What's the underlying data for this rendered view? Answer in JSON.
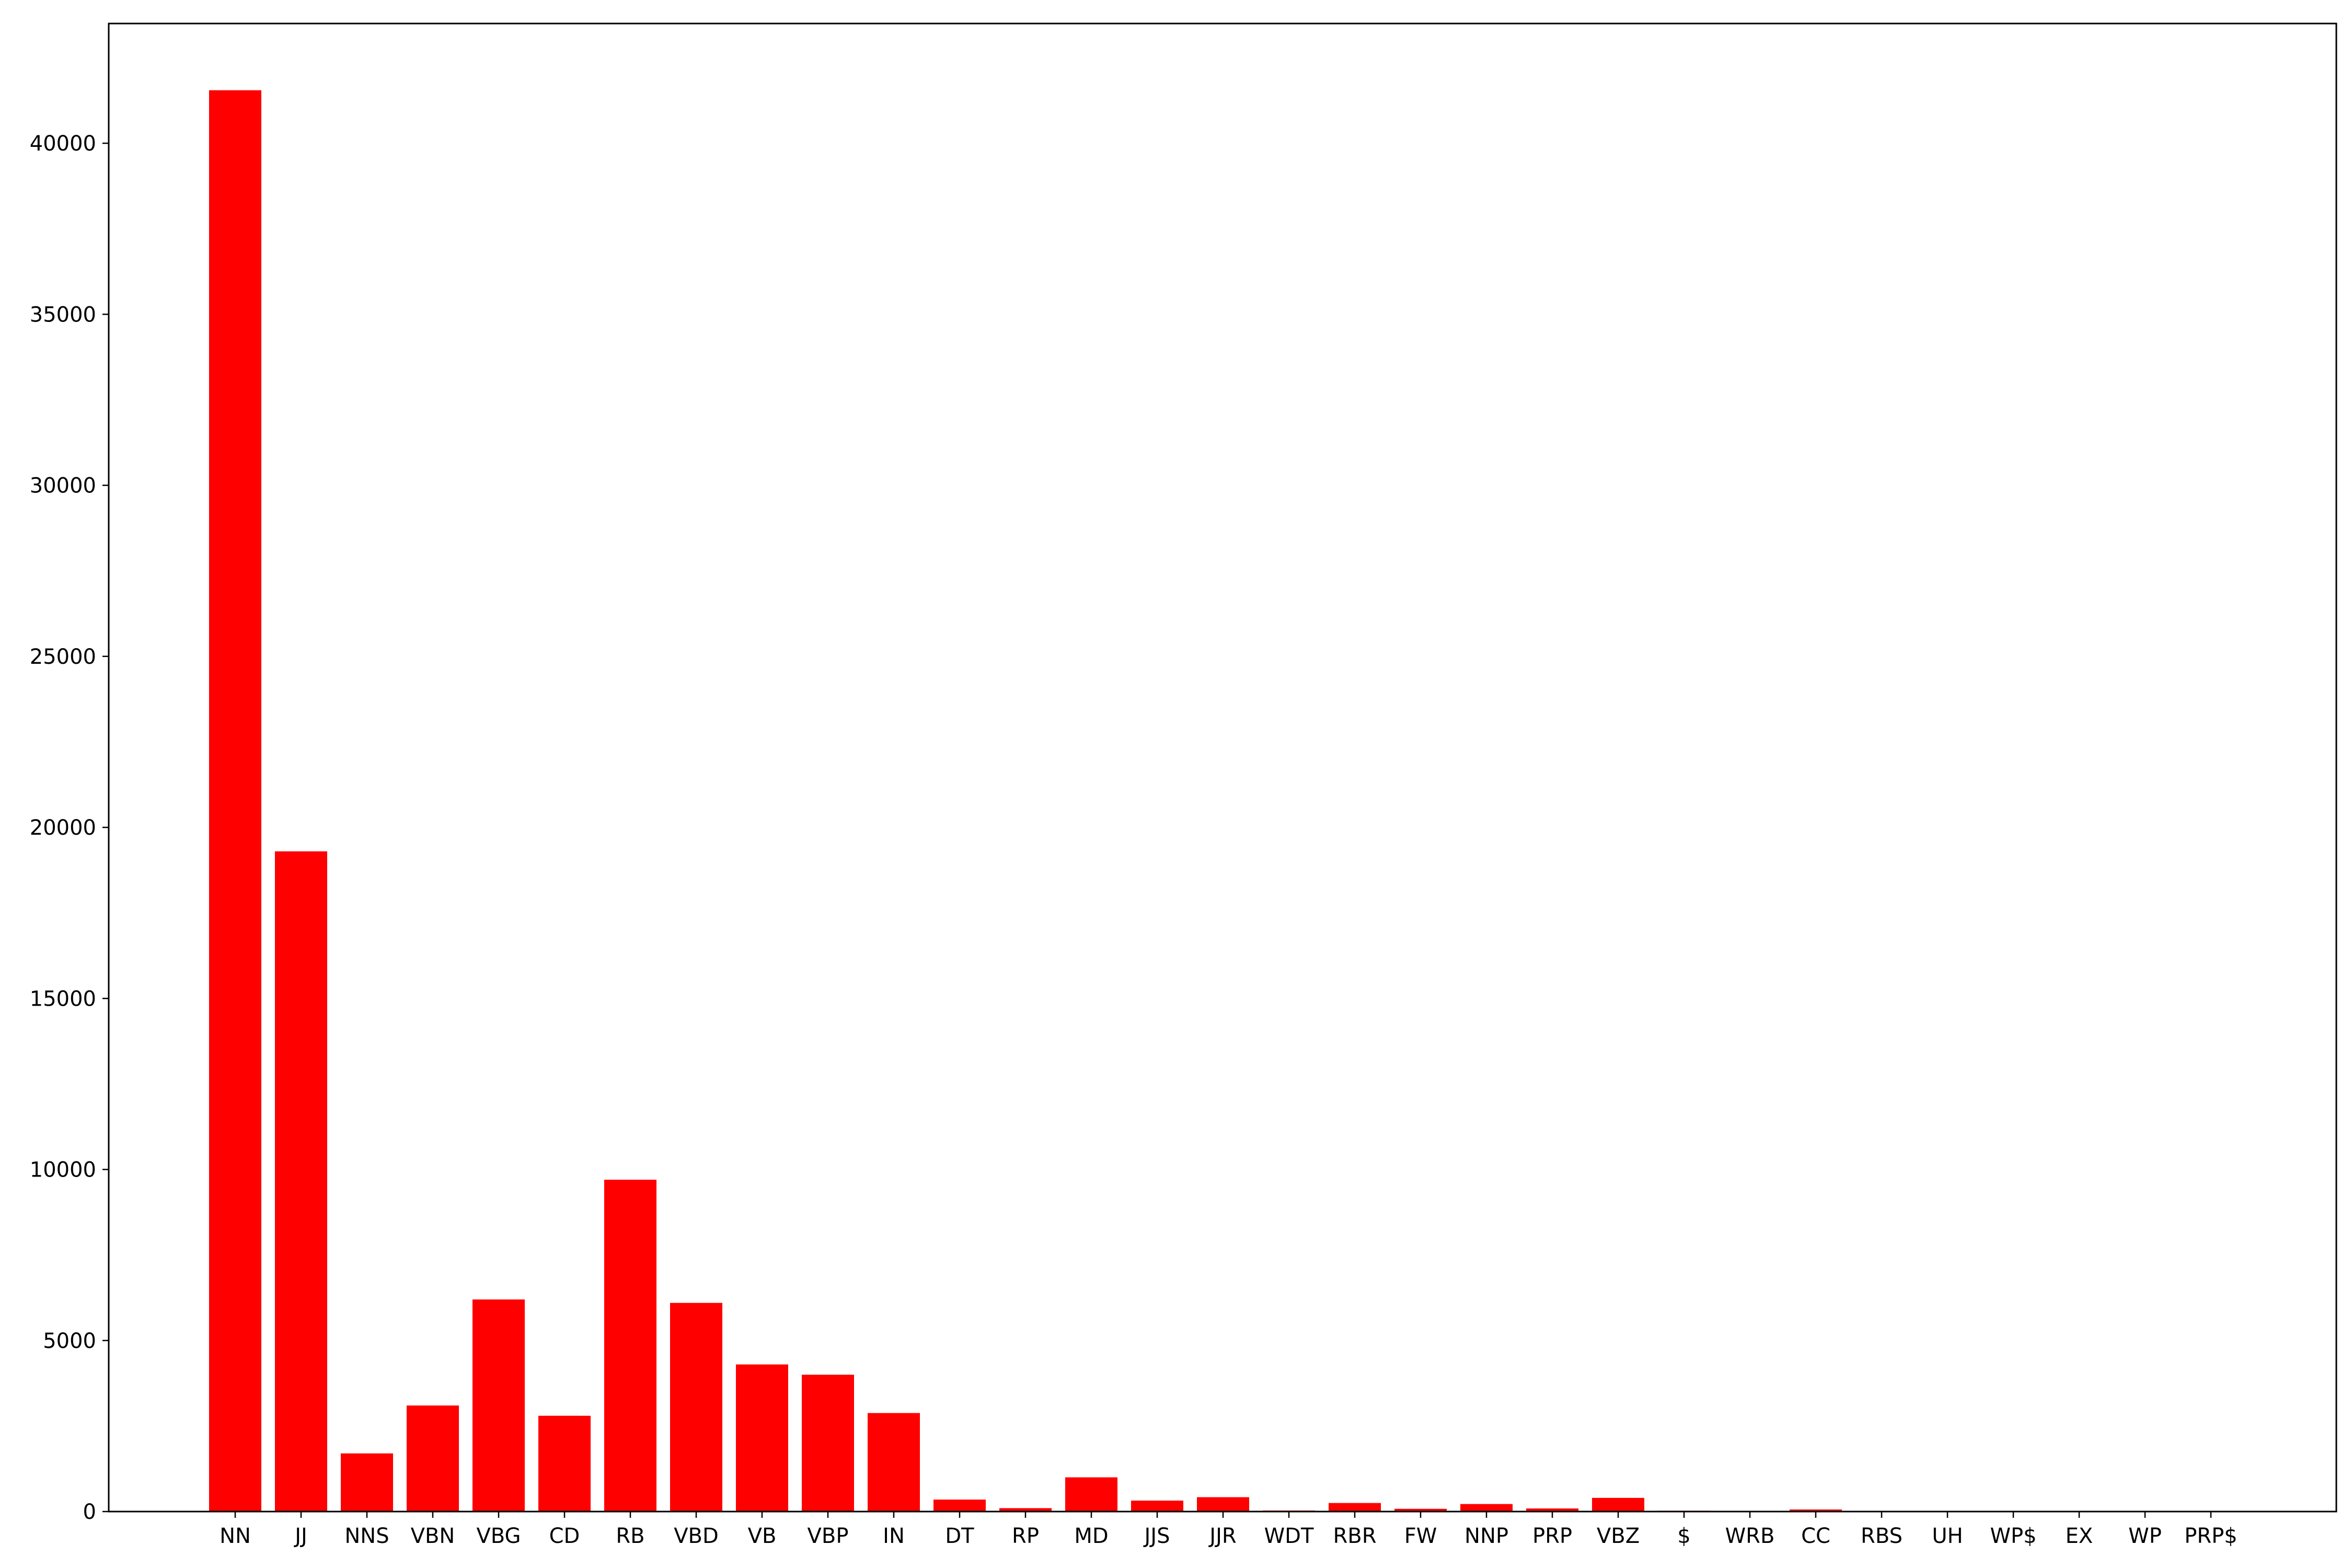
{
  "chart_data": {
    "type": "bar",
    "title": "",
    "xlabel": "",
    "ylabel": "",
    "ylim": [
      0,
      43500
    ],
    "yticks": [
      0,
      5000,
      10000,
      15000,
      20000,
      25000,
      30000,
      35000,
      40000
    ],
    "grid": false,
    "bar_color": "#ff0000",
    "categories": [
      "NN",
      "JJ",
      "NNS",
      "VBN",
      "VBG",
      "CD",
      "RB",
      "VBD",
      "VB",
      "VBP",
      "IN",
      "DT",
      "RP",
      "MD",
      "JJS",
      "JJR",
      "WDT",
      "RBR",
      "FW",
      "NNP",
      "PRP",
      "VBZ",
      "$",
      "WRB",
      "CC",
      "RBS",
      "UH",
      "WP$",
      "EX",
      "WP",
      "PRP$"
    ],
    "values": [
      41550,
      19300,
      1700,
      3100,
      6200,
      2800,
      9700,
      6100,
      4300,
      4000,
      2880,
      350,
      100,
      1000,
      320,
      420,
      30,
      250,
      80,
      220,
      90,
      400,
      25,
      10,
      60,
      10,
      5,
      5,
      5,
      5,
      5
    ]
  }
}
